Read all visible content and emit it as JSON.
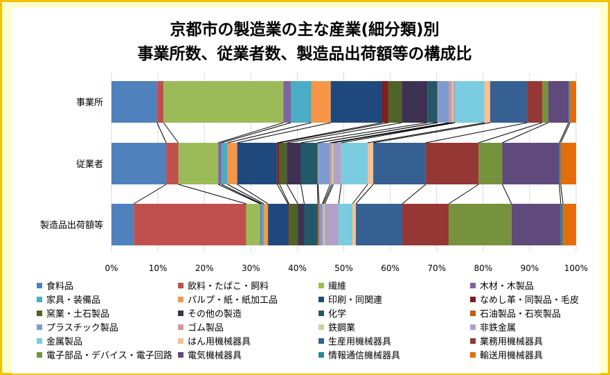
{
  "chart_data": {
    "type": "bar",
    "orientation": "horizontal",
    "stacked": "percent",
    "title_lines": [
      "京都市の製造業の主な産業(細分類)別",
      "事業所数、従業者数、製造品出荷額等の構成比"
    ],
    "categories": [
      "事業所",
      "従業者",
      "製造品出荷額等"
    ],
    "xlim": [
      0,
      100
    ],
    "x_ticks": [
      "0%",
      "10%",
      "20%",
      "30%",
      "40%",
      "50%",
      "60%",
      "70%",
      "80%",
      "90%",
      "100%"
    ],
    "grid": "vertical",
    "legend_position": "bottom",
    "series": [
      {
        "name": "食料品",
        "color": "#4F81BD",
        "values": [
          9.8,
          11.8,
          4.8
        ]
      },
      {
        "name": "飲料・たばこ・飼料",
        "color": "#C0504D",
        "values": [
          1.4,
          2.6,
          24.2
        ]
      },
      {
        "name": "繊維",
        "color": "#9BBB59",
        "values": [
          25.8,
          8.6,
          3.0
        ]
      },
      {
        "name": "木材・木製品",
        "color": "#8064A2",
        "values": [
          1.6,
          0.7,
          0.3
        ]
      },
      {
        "name": "家具・装備品",
        "color": "#4BACC6",
        "values": [
          4.4,
          1.3,
          0.5
        ]
      },
      {
        "name": "パルプ・紙・紙加工品",
        "color": "#F79646",
        "values": [
          4.2,
          2.1,
          0.9
        ]
      },
      {
        "name": "印刷・同関連",
        "color": "#1F497D",
        "values": [
          11.0,
          8.6,
          4.3
        ]
      },
      {
        "name": "なめし革・同製品・毛皮",
        "color": "#7F1F1F",
        "values": [
          1.4,
          0.5,
          0.2
        ]
      },
      {
        "name": "窯業・土石製品",
        "color": "#4F6228",
        "values": [
          2.9,
          1.6,
          1.9
        ]
      },
      {
        "name": "その他の製造",
        "color": "#3F3151",
        "values": [
          5.5,
          3.0,
          1.4
        ]
      },
      {
        "name": "化学",
        "color": "#215968",
        "values": [
          2.1,
          3.6,
          2.9
        ]
      },
      {
        "name": "石油製品・石炭製品",
        "color": "#C55A11",
        "values": [
          0.1,
          0.1,
          0.3
        ]
      },
      {
        "name": "プラスチック製品",
        "color": "#7F9CD0",
        "values": [
          2.5,
          2.6,
          0.7
        ]
      },
      {
        "name": "ゴム製品",
        "color": "#D99694",
        "values": [
          0.6,
          0.4,
          0.2
        ]
      },
      {
        "name": "鉄鋼業",
        "color": "#C3D69B",
        "values": [
          0.3,
          0.3,
          0.3
        ]
      },
      {
        "name": "非鉄金属",
        "color": "#B3A2C7",
        "values": [
          0.4,
          1.7,
          3.0
        ]
      },
      {
        "name": "金属製品",
        "color": "#7ACCE0",
        "values": [
          6.3,
          5.7,
          3.0
        ]
      },
      {
        "name": "はん用機械器具",
        "color": "#FAC08F",
        "values": [
          1.2,
          1.2,
          0.7
        ]
      },
      {
        "name": "生産用機械器具",
        "color": "#366092",
        "values": [
          8.0,
          11.3,
          10.0
        ]
      },
      {
        "name": "業務用機械器具",
        "color": "#953735",
        "values": [
          3.2,
          11.4,
          10.0
        ]
      },
      {
        "name": "電子部品・デバイス・電子回路",
        "color": "#76923C",
        "values": [
          1.3,
          5.1,
          13.5
        ]
      },
      {
        "name": "電気機械器具",
        "color": "#604A7B",
        "values": [
          4.4,
          12.3,
          10.6
        ]
      },
      {
        "name": "情報通信機械器具",
        "color": "#31849B",
        "values": [
          0.3,
          0.3,
          0.5
        ]
      },
      {
        "name": "輸送用機械器具",
        "color": "#E46C0A",
        "values": [
          1.3,
          3.3,
          2.8
        ]
      }
    ]
  }
}
